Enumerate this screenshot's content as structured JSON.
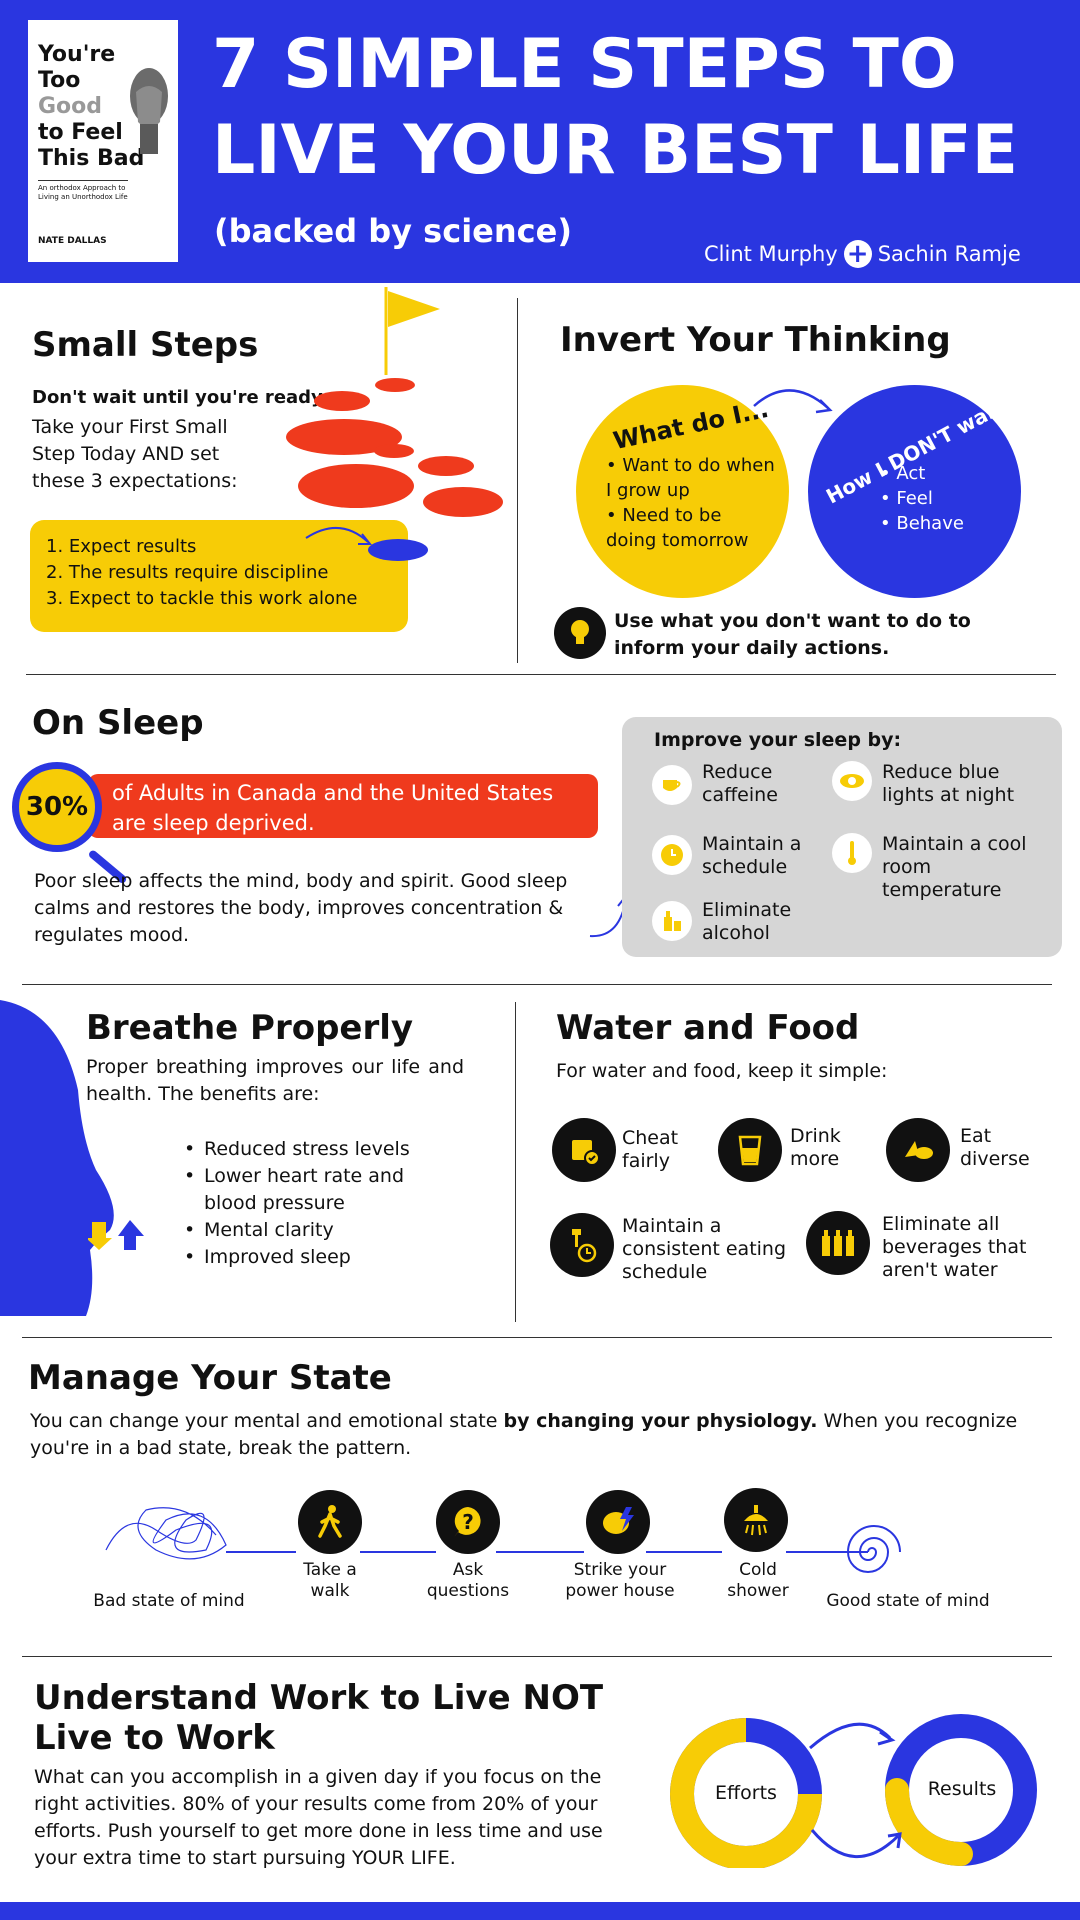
{
  "header": {
    "title_line1": "7 SIMPLE STEPS TO",
    "title_line2": "LIVE YOUR BEST LIFE",
    "subtitle": "(backed by science)",
    "author1": "Clint Murphy",
    "author2": "Sachin Ramje",
    "book": {
      "title_l1": "You're",
      "title_l2": "Too",
      "title_l3": "Good",
      "title_l4": "to Feel",
      "title_l5": "This Bad",
      "tagline": "An orthodox Approach to Living an Unorthodox Life",
      "author": "NATE DALLAS"
    }
  },
  "small_steps": {
    "title": "Small Steps",
    "bold": "Don't wait until you're ready",
    "text": "Take your First Small Step Today AND set these 3 expectations:",
    "items": [
      "1. Expect results",
      "2. The results require discipline",
      "3. Expect to tackle this work alone"
    ]
  },
  "invert": {
    "title": "Invert Your Thinking",
    "yellow_title": "What do I...",
    "yellow_items": [
      "• Want to do when I grow up",
      "• Need to be doing tomorrow"
    ],
    "blue_title": "How I DON'T want to...",
    "blue_items": [
      "• Act",
      "• Feel",
      "• Behave"
    ],
    "tip": "Use what you don't want to do to inform your daily actions."
  },
  "sleep": {
    "title": "On Sleep",
    "stat": "30%",
    "stat_text": "of Adults in Canada and the United States are sleep deprived.",
    "text": "Poor sleep affects the mind, body and spirit. Good sleep calms and restores the body, improves concentration & regulates mood.",
    "improve_title": "Improve your sleep by:",
    "tips": [
      {
        "label": "Reduce caffeine",
        "icon": "coffee-icon"
      },
      {
        "label": "Reduce blue lights at night",
        "icon": "eye-icon"
      },
      {
        "label": "Maintain a schedule",
        "icon": "clock-icon"
      },
      {
        "label": "Maintain a cool room temperature",
        "icon": "thermometer-icon"
      },
      {
        "label": "Eliminate alcohol",
        "icon": "bottle-icon"
      }
    ]
  },
  "breathe": {
    "title": "Breathe Properly",
    "text": "Proper breathing improves our life and health. The benefits are:",
    "items": [
      "Reduced stress levels",
      "Lower heart rate and blood  pressure",
      "Mental clarity",
      "Improved sleep"
    ]
  },
  "water": {
    "title": "Water and Food",
    "text": "For water and food, keep it simple:",
    "items": [
      {
        "label": "Cheat fairly",
        "icon": "calendar-check-icon"
      },
      {
        "label": "Drink more",
        "icon": "glass-icon"
      },
      {
        "label": "Eat diverse",
        "icon": "food-icon"
      },
      {
        "label": "Maintain a consistent eating schedule",
        "icon": "cutlery-clock-icon"
      },
      {
        "label": "Eliminate all beverages that aren't water",
        "icon": "bottles-icon"
      }
    ]
  },
  "state": {
    "title": "Manage Your State",
    "text_pre": "You can change your mental and emotional state ",
    "text_bold": "by changing your physiology.",
    "text_post": " When you recognize you're in a bad state, break the pattern.",
    "start": "Bad state of mind",
    "steps": [
      "Take a walk",
      "Ask questions",
      "Strike your power house",
      "Cold shower"
    ],
    "end": "Good state of mind"
  },
  "work": {
    "title_l1": "Understand Work to Live NOT",
    "title_l2": "Live to Work",
    "text": "What can you accomplish in a given day if you focus on the right activities. 80% of your results come from 20% of your efforts. Push yourself to get more done in less time and use your extra time to start pursuing YOUR LIFE.",
    "efforts": "Efforts",
    "results": "Results"
  },
  "colors": {
    "blue": "#2a36e0",
    "yellow": "#f7cc06",
    "red": "#ef3a1d",
    "gray": "#d6d6d6"
  }
}
